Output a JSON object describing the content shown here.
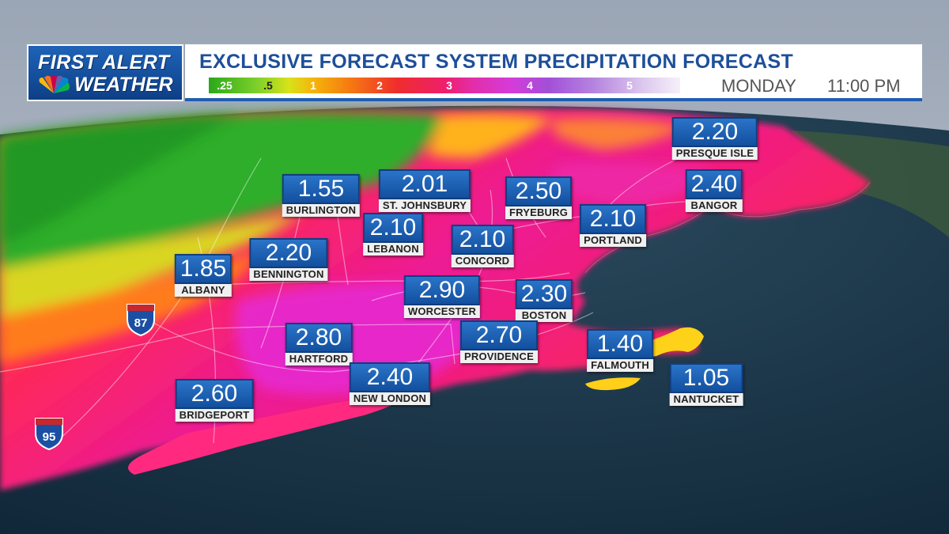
{
  "header": {
    "logo_line1": "FIRST ALERT",
    "logo_line2": "WEATHER",
    "title": "EXCLUSIVE FORECAST SYSTEM PRECIPITATION FORECAST",
    "day": "MONDAY",
    "time": "11:00 PM",
    "scale_ticks": [
      ".25",
      ".5",
      "1",
      "2",
      "3",
      "4",
      "5"
    ]
  },
  "highways": [
    {
      "label": "87"
    },
    {
      "label": "95"
    }
  ],
  "locations": [
    {
      "name": "PRESQUE ISLE",
      "value": "2.20"
    },
    {
      "name": "ST. JOHNSBURY",
      "value": "2.01"
    },
    {
      "name": "BURLINGTON",
      "value": "1.55"
    },
    {
      "name": "FRYEBURG",
      "value": "2.50"
    },
    {
      "name": "BANGOR",
      "value": "2.40"
    },
    {
      "name": "LEBANON",
      "value": "2.10"
    },
    {
      "name": "CONCORD",
      "value": "2.10"
    },
    {
      "name": "PORTLAND",
      "value": "2.10"
    },
    {
      "name": "ALBANY",
      "value": "1.85"
    },
    {
      "name": "BENNINGTON",
      "value": "2.20"
    },
    {
      "name": "WORCESTER",
      "value": "2.90"
    },
    {
      "name": "BOSTON",
      "value": "2.30"
    },
    {
      "name": "HARTFORD",
      "value": "2.80"
    },
    {
      "name": "PROVIDENCE",
      "value": "2.70"
    },
    {
      "name": "FALMOUTH",
      "value": "1.40"
    },
    {
      "name": "NEW LONDON",
      "value": "2.40"
    },
    {
      "name": "NANTUCKET",
      "value": "1.05"
    },
    {
      "name": "BRIDGEPORT",
      "value": "2.60"
    }
  ]
}
